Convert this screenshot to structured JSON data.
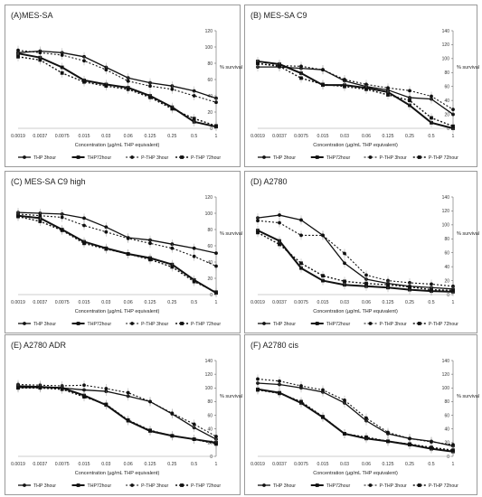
{
  "legend_labels": [
    "THP 3hour",
    "THP72hour",
    "P-THP 3hour",
    "P-THP 72hour"
  ],
  "chart_data": [
    {
      "type": "line",
      "title": "(A)MES-SA",
      "xlabel": "Concentration (µg/mL THP equivalent)",
      "ylabel": "% survival",
      "categories": [
        "0.0019",
        "0.0037",
        "0.0075",
        "0.015",
        "0.03",
        "0.06",
        "0.125",
        "0.25",
        "0.5",
        "1"
      ],
      "ylim": [
        0,
        120
      ],
      "yticks": [
        0,
        20,
        40,
        60,
        80,
        100,
        120
      ],
      "series": [
        {
          "name": "THP 3hour",
          "values": [
            93,
            95,
            93,
            88,
            75,
            62,
            56,
            52,
            46,
            37
          ]
        },
        {
          "name": "THP72hour",
          "values": [
            92,
            87,
            75,
            59,
            54,
            50,
            40,
            26,
            8,
            2
          ]
        },
        {
          "name": "P-THP 3hour",
          "values": [
            96,
            93,
            90,
            83,
            72,
            58,
            52,
            48,
            40,
            32
          ]
        },
        {
          "name": "P-THP 72hour",
          "values": [
            88,
            84,
            68,
            57,
            52,
            48,
            38,
            24,
            12,
            3
          ]
        }
      ]
    },
    {
      "type": "line",
      "title": "(B) MES-SA C9",
      "xlabel": "Concentration (µg/mL THP equivalent)",
      "ylabel": "% survival",
      "categories": [
        "0.0019",
        "0.0037",
        "0.0075",
        "0.015",
        "0.03",
        "0.06",
        "0.125",
        "0.25",
        "0.5",
        "1"
      ],
      "ylim": [
        0,
        140
      ],
      "yticks": [
        0,
        20,
        40,
        60,
        80,
        100,
        120,
        140
      ],
      "series": [
        {
          "name": "THP 3hour",
          "values": [
            88,
            88,
            86,
            84,
            68,
            60,
            55,
            44,
            42,
            20
          ]
        },
        {
          "name": "THP72hour",
          "values": [
            96,
            92,
            79,
            62,
            62,
            58,
            52,
            33,
            8,
            0
          ]
        },
        {
          "name": "P-THP 3hour",
          "values": [
            93,
            90,
            89,
            84,
            70,
            63,
            58,
            54,
            46,
            27
          ]
        },
        {
          "name": "P-THP 72hour",
          "values": [
            93,
            89,
            72,
            63,
            60,
            56,
            48,
            40,
            15,
            3
          ]
        }
      ]
    },
    {
      "type": "line",
      "title": "(C) MES-SA C9 high",
      "xlabel": "Concentration (µg/mL THP equivalent)",
      "ylabel": "% survival",
      "categories": [
        "0.0019",
        "0.0037",
        "0.0075",
        "0.015",
        "0.03",
        "0.06",
        "0.125",
        "0.25",
        "0.5",
        "1"
      ],
      "ylim": [
        0,
        120
      ],
      "yticks": [
        0,
        20,
        40,
        60,
        80,
        100,
        120
      ],
      "series": [
        {
          "name": "THP 3hour",
          "values": [
            101,
            100,
            99,
            94,
            83,
            70,
            67,
            62,
            57,
            51
          ]
        },
        {
          "name": "THP72hour",
          "values": [
            97,
            94,
            80,
            65,
            57,
            50,
            45,
            37,
            18,
            2
          ]
        },
        {
          "name": "P-THP 3hour",
          "values": [
            99,
            97,
            95,
            85,
            77,
            69,
            63,
            57,
            47,
            35
          ]
        },
        {
          "name": "P-THP 72hour",
          "values": [
            96,
            90,
            79,
            63,
            56,
            50,
            43,
            34,
            16,
            3
          ]
        }
      ]
    },
    {
      "type": "line",
      "title": "(D) A2780",
      "xlabel": "Concentration (µg/mL THP equivalent)",
      "ylabel": "% survival",
      "categories": [
        "0.0019",
        "0.0037",
        "0.0075",
        "0.015",
        "0.03",
        "0.06",
        "0.125",
        "0.25",
        "0.5",
        "1"
      ],
      "ylim": [
        0,
        140
      ],
      "yticks": [
        0,
        20,
        40,
        60,
        80,
        100,
        120,
        140
      ],
      "series": [
        {
          "name": "THP 3hour",
          "values": [
            110,
            114,
            107,
            85,
            45,
            22,
            16,
            12,
            10,
            8
          ]
        },
        {
          "name": "THP72hour",
          "values": [
            92,
            77,
            38,
            20,
            14,
            12,
            10,
            7,
            5,
            4
          ]
        },
        {
          "name": "P-THP 3hour",
          "values": [
            106,
            103,
            85,
            85,
            59,
            28,
            20,
            17,
            15,
            12
          ]
        },
        {
          "name": "P-THP 72hour",
          "values": [
            89,
            72,
            45,
            27,
            19,
            16,
            14,
            11,
            7,
            6
          ]
        }
      ]
    },
    {
      "type": "line",
      "title": "(E) A2780 ADR",
      "xlabel": "Concentration (µg/mL THP equivalent)",
      "ylabel": "% survival",
      "categories": [
        "0.0019",
        "0.0037",
        "0.0075",
        "0.015",
        "0.03",
        "0.06",
        "0.125",
        "0.25",
        "0.5",
        "1"
      ],
      "ylim": [
        0,
        140
      ],
      "yticks": [
        0,
        20,
        40,
        60,
        80,
        100,
        120,
        140
      ],
      "series": [
        {
          "name": "THP 3hour",
          "values": [
            103,
            102,
            100,
            97,
            95,
            88,
            80,
            62,
            42,
            25
          ]
        },
        {
          "name": "THP72hour",
          "values": [
            101,
            101,
            100,
            89,
            75,
            52,
            37,
            30,
            25,
            20
          ]
        },
        {
          "name": "P-THP 3hour",
          "values": [
            105,
            104,
            103,
            104,
            99,
            93,
            80,
            63,
            47,
            29
          ]
        },
        {
          "name": "P-THP 72hour",
          "values": [
            100,
            100,
            98,
            87,
            76,
            53,
            38,
            30,
            25,
            18
          ]
        }
      ]
    },
    {
      "type": "line",
      "title": "(F) A2780 cis",
      "xlabel": "Concentration (µg/mL THP equivalent)",
      "ylabel": "% survival",
      "categories": [
        "0.0019",
        "0.0037",
        "0.0075",
        "0.015",
        "0.03",
        "0.06",
        "0.125",
        "0.25",
        "0.5",
        "1"
      ],
      "ylim": [
        0,
        140
      ],
      "yticks": [
        0,
        20,
        40,
        60,
        80,
        100,
        120,
        140
      ],
      "series": [
        {
          "name": "THP 3hour",
          "values": [
            107,
            105,
            100,
            94,
            78,
            52,
            33,
            26,
            22,
            15
          ]
        },
        {
          "name": "THP72hour",
          "values": [
            98,
            93,
            78,
            57,
            33,
            26,
            22,
            17,
            11,
            7
          ]
        },
        {
          "name": "P-THP 3hour",
          "values": [
            113,
            110,
            103,
            97,
            82,
            56,
            35,
            26,
            21,
            17
          ]
        },
        {
          "name": "P-THP 72hour",
          "values": [
            97,
            92,
            80,
            58,
            33,
            28,
            22,
            18,
            13,
            9
          ]
        }
      ]
    }
  ]
}
